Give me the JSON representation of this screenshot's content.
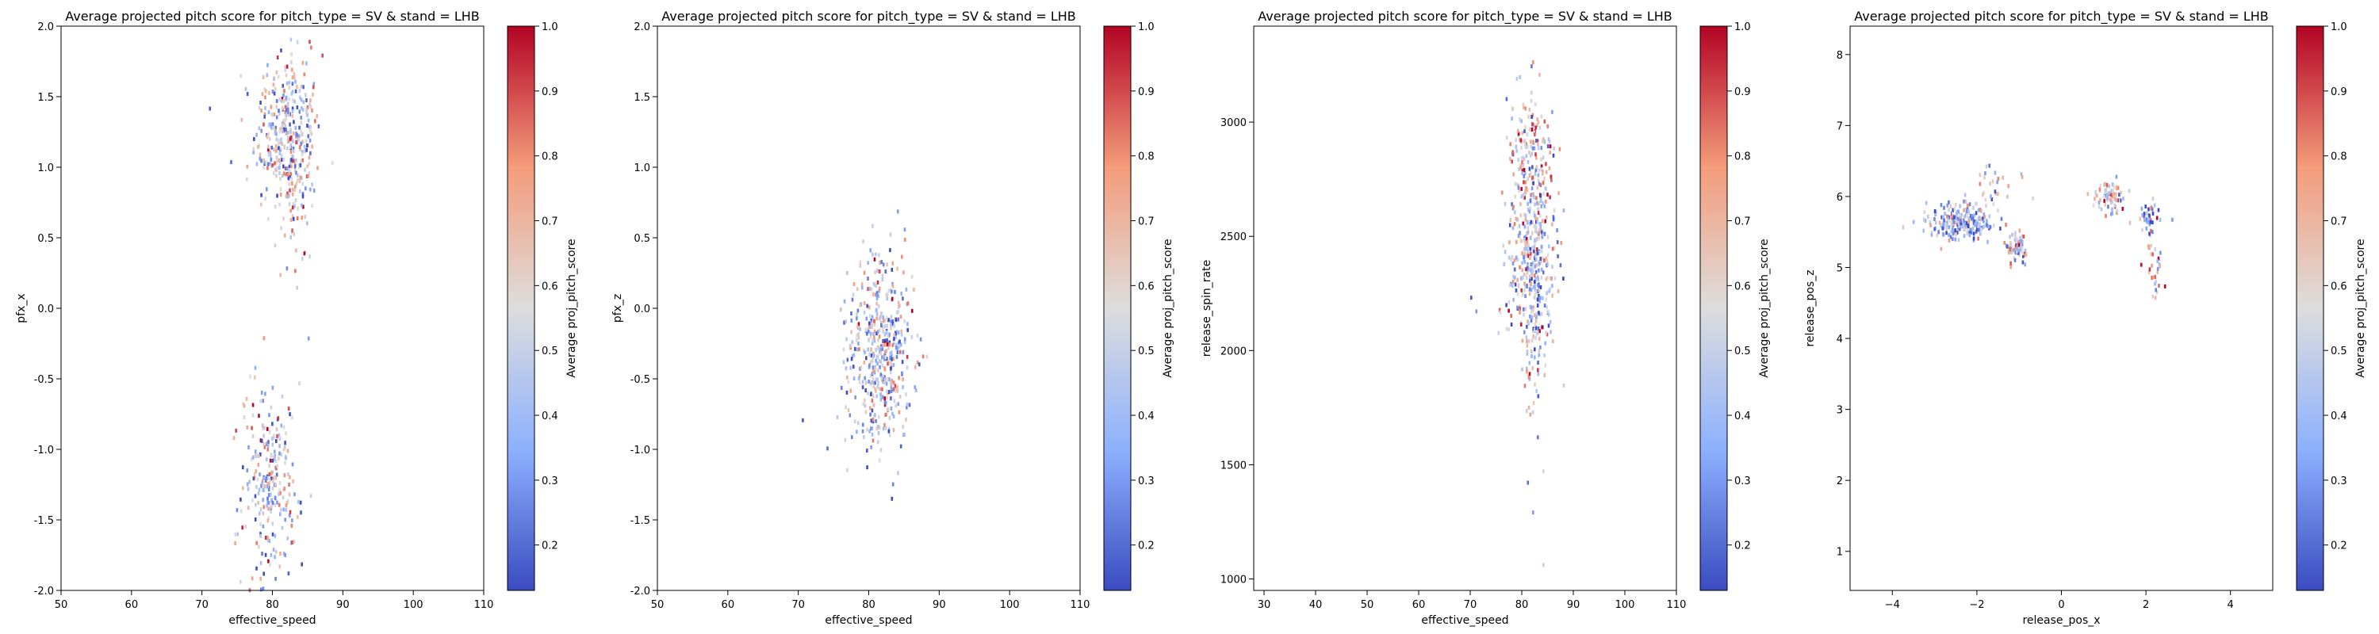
{
  "colorbar": {
    "label": "Average proj_pitch_score",
    "ticks": [
      0.2,
      0.3,
      0.4,
      0.5,
      0.6,
      0.7,
      0.8,
      0.9,
      1.0
    ],
    "range": [
      0.13,
      1.0
    ],
    "colormap": "coolwarm",
    "colors": {
      "low": "#3b4cc0",
      "mid": "#dddddd",
      "high": "#b40426"
    }
  },
  "chart_data": [
    {
      "type": "heatmap",
      "title": "Average projected pitch score for pitch_type = SV & stand = LHB",
      "xlabel": "effective_speed",
      "ylabel": "pfx_x",
      "xlim": [
        50,
        110
      ],
      "ylim": [
        -2.0,
        2.0
      ],
      "xticks": [
        50,
        60,
        70,
        80,
        90,
        100,
        110
      ],
      "yticks": [
        "-2.0",
        "-1.5",
        "-1.0",
        "-0.5",
        "0.0",
        "0.5",
        "1.0",
        "1.5",
        "2.0"
      ],
      "clusters": [
        {
          "cx": 82,
          "cy": 1.25,
          "sx": 2.3,
          "sy": 0.28,
          "n": 340,
          "bias": 0.0
        },
        {
          "cx": 79.5,
          "cy": -1.25,
          "sx": 2.0,
          "sy": 0.35,
          "n": 260,
          "bias": 0.0
        },
        {
          "cx": 83,
          "cy": 0.85,
          "sx": 1.5,
          "sy": 0.25,
          "n": 60,
          "bias": 0.05
        }
      ],
      "outliers": [
        {
          "x": 71,
          "y": 1.43,
          "v": 0.15
        },
        {
          "x": 74,
          "y": 1.05,
          "v": 0.2
        },
        {
          "x": 75.5,
          "y": 1.35,
          "v": 0.7
        },
        {
          "x": 81,
          "y": 0.25,
          "v": 0.7
        },
        {
          "x": 77,
          "y": -1.9,
          "v": 0.75
        },
        {
          "x": 85,
          "y": -0.2,
          "v": 0.3
        }
      ]
    },
    {
      "type": "heatmap",
      "title": "Average projected pitch score for pitch_type = SV & stand = LHB",
      "xlabel": "effective_speed",
      "ylabel": "pfx_z",
      "xlim": [
        50,
        110
      ],
      "ylim": [
        -2.0,
        2.0
      ],
      "xticks": [
        50,
        60,
        70,
        80,
        90,
        100,
        110
      ],
      "yticks": [
        "-2.0",
        "-1.5",
        "-1.0",
        "-0.5",
        "0.0",
        "0.5",
        "1.0",
        "1.5",
        "2.0"
      ],
      "clusters": [
        {
          "cx": 81.5,
          "cy": -0.3,
          "sx": 2.3,
          "sy": 0.35,
          "n": 480,
          "bias": 0.0
        }
      ],
      "outliers": [
        {
          "x": 70.5,
          "y": -0.78,
          "v": 0.15
        },
        {
          "x": 74,
          "y": -0.98,
          "v": 0.2
        },
        {
          "x": 84,
          "y": 0.7,
          "v": 0.3
        },
        {
          "x": 85,
          "y": 0.5,
          "v": 0.8
        },
        {
          "x": 76,
          "y": -0.55,
          "v": 0.25
        }
      ]
    },
    {
      "type": "heatmap",
      "title": "Average projected pitch score for pitch_type = SV & stand = LHB",
      "xlabel": "effective_speed",
      "ylabel": "release_spin_rate",
      "xlim": [
        28,
        110
      ],
      "ylim": [
        950,
        3420
      ],
      "xticks": [
        30,
        40,
        50,
        60,
        70,
        80,
        90,
        100,
        110
      ],
      "yticks": [
        "1000",
        "1500",
        "2000",
        "2500",
        "3000"
      ],
      "clusters": [
        {
          "cx": 81.5,
          "cy": 2850,
          "sx": 2.3,
          "sy": 140,
          "n": 200,
          "bias": 0.12
        },
        {
          "cx": 82,
          "cy": 2380,
          "sx": 2.5,
          "sy": 170,
          "n": 320,
          "bias": -0.05
        },
        {
          "cx": 82,
          "cy": 2000,
          "sx": 1.5,
          "sy": 180,
          "n": 60,
          "bias": 0.05
        }
      ],
      "outliers": [
        {
          "x": 70,
          "y": 2240,
          "v": 0.15
        },
        {
          "x": 71,
          "y": 2180,
          "v": 0.3
        },
        {
          "x": 81,
          "y": 1430,
          "v": 0.2
        },
        {
          "x": 82,
          "y": 1300,
          "v": 0.3
        },
        {
          "x": 84,
          "y": 1480,
          "v": 0.6
        },
        {
          "x": 84,
          "y": 1070,
          "v": 0.5
        },
        {
          "x": 82,
          "y": 3270,
          "v": 0.8
        },
        {
          "x": 76,
          "y": 2700,
          "v": 0.8
        }
      ]
    },
    {
      "type": "heatmap",
      "title": "Average projected pitch score for pitch_type = SV & stand = LHB",
      "xlabel": "release_pos_x",
      "ylabel": "release_pos_z",
      "xlim": [
        -5,
        5
      ],
      "ylim": [
        0.45,
        8.4
      ],
      "xticks": [
        -4,
        -2,
        0,
        2,
        4
      ],
      "xtick_labels": [
        "−4",
        "−2",
        "0",
        "2",
        "4"
      ],
      "yticks": [
        "1",
        "2",
        "3",
        "4",
        "5",
        "6",
        "7",
        "8"
      ],
      "clusters": [
        {
          "cx": -2.4,
          "cy": 5.65,
          "sx": 0.4,
          "sy": 0.12,
          "n": 230,
          "bias": -0.12
        },
        {
          "cx": -1.1,
          "cy": 5.3,
          "sx": 0.12,
          "sy": 0.1,
          "n": 70,
          "bias": 0.05
        },
        {
          "cx": -1.6,
          "cy": 6.1,
          "sx": 0.35,
          "sy": 0.2,
          "n": 30,
          "bias": 0.0
        },
        {
          "cx": 1.1,
          "cy": 6.05,
          "sx": 0.2,
          "sy": 0.1,
          "n": 70,
          "bias": 0.05
        },
        {
          "cx": 2.0,
          "cy": 5.75,
          "sx": 0.12,
          "sy": 0.1,
          "n": 40,
          "bias": -0.1
        },
        {
          "cx": 2.2,
          "cy": 5.0,
          "sx": 0.12,
          "sy": 0.18,
          "n": 30,
          "bias": 0.1
        }
      ],
      "outliers": [
        {
          "x": -1.8,
          "y": 6.45,
          "v": 0.5
        },
        {
          "x": -0.7,
          "y": 6.0,
          "v": 0.6
        },
        {
          "x": 2.6,
          "y": 5.7,
          "v": 0.3
        },
        {
          "x": 2.2,
          "y": 4.6,
          "v": 0.7
        }
      ]
    }
  ]
}
